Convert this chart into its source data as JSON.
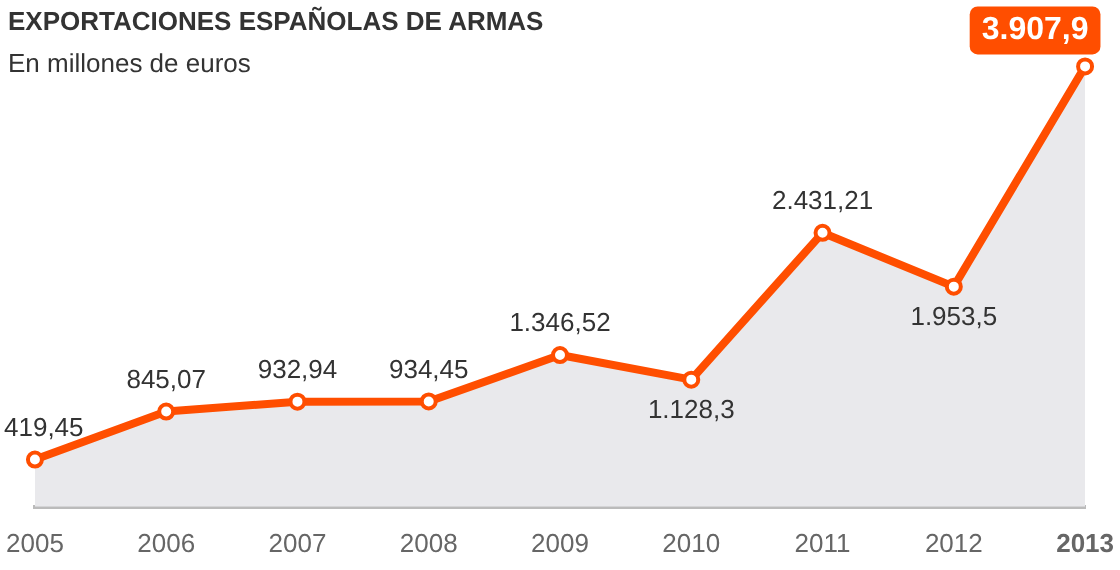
{
  "chart_data": {
    "type": "area",
    "title": "EXPORTACIONES ESPAÑOLAS DE ARMAS",
    "subtitle": "En millones de euros",
    "categories": [
      "2005",
      "2006",
      "2007",
      "2008",
      "2009",
      "2010",
      "2011",
      "2012",
      "2013"
    ],
    "values": [
      419.45,
      845.07,
      932.94,
      934.45,
      1346.52,
      1128.3,
      2431.21,
      1953.5,
      3907.9
    ],
    "value_labels": [
      "419,45",
      "845,07",
      "932,94",
      "934,45",
      "1.346,52",
      "1.128,3",
      "2.431,21",
      "1.953,5",
      "3.907,9"
    ],
    "color": "#ff4e00",
    "tick_labels": "x",
    "grid": false,
    "legend": false,
    "marker": "circle"
  }
}
